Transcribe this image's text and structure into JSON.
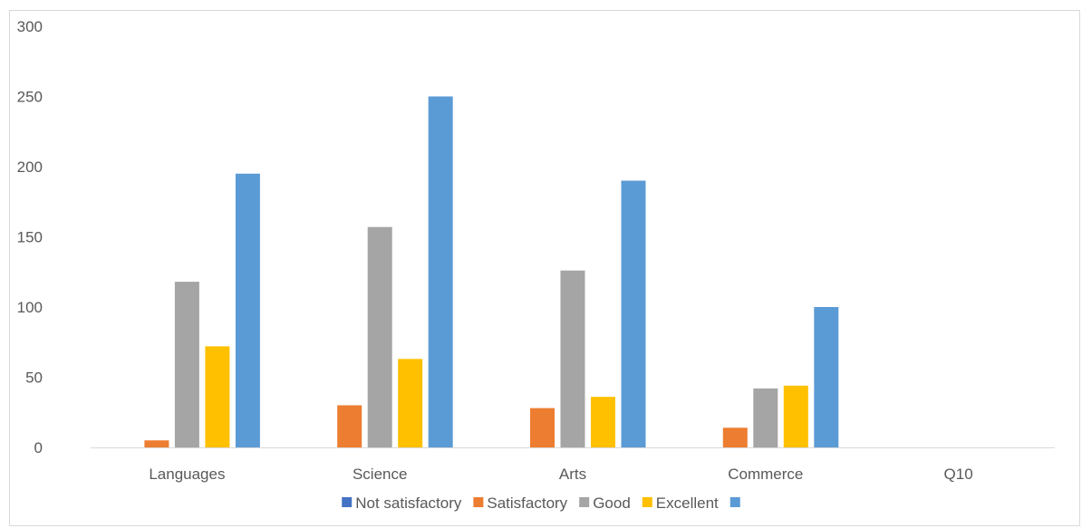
{
  "chart_data": {
    "type": "bar",
    "categories": [
      "Languages",
      "Science",
      "Arts",
      "Commerce",
      "Q10"
    ],
    "series": [
      {
        "name": "Not satisfactory",
        "color": "#4472c4",
        "values": [
          0,
          0,
          0,
          0,
          0
        ]
      },
      {
        "name": "Satisfactory",
        "color": "#ed7d31",
        "values": [
          5,
          30,
          28,
          14,
          0
        ]
      },
      {
        "name": "Good",
        "color": "#a5a5a5",
        "values": [
          118,
          157,
          126,
          42,
          0
        ]
      },
      {
        "name": "Excellent",
        "color": "#ffc000",
        "values": [
          72,
          63,
          36,
          44,
          0
        ]
      },
      {
        "name": "",
        "color": "#5b9bd5",
        "values": [
          195,
          250,
          190,
          100,
          0
        ]
      }
    ],
    "yticks": [
      0,
      50,
      100,
      150,
      200,
      250,
      300
    ],
    "ylim": [
      0,
      300
    ],
    "grid": false,
    "legend": "bottom",
    "title": "",
    "xlabel": "",
    "ylabel": ""
  }
}
